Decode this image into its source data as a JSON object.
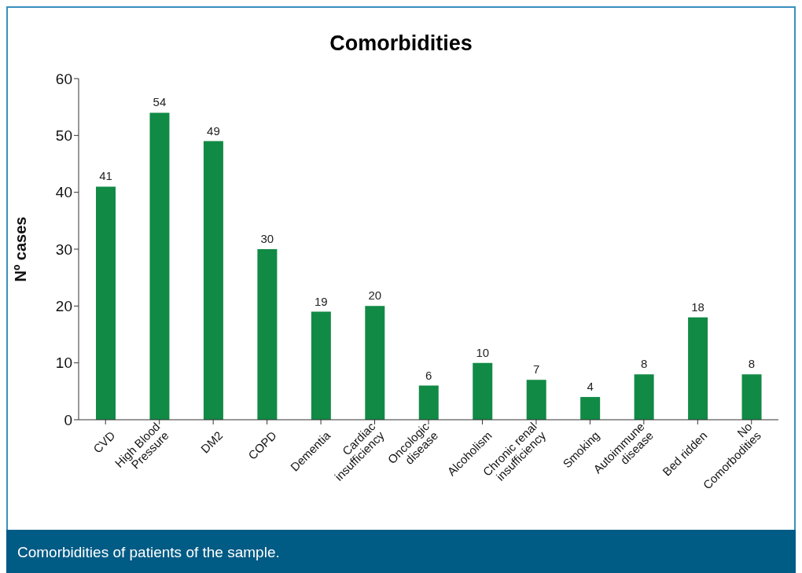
{
  "chart_data": {
    "type": "bar",
    "title": "Comorbidities",
    "ylabel": "Nº cases",
    "categories": [
      "CVD",
      "High Blood\nPressure",
      "DM2",
      "COPD",
      "Dementia",
      "Cardiac\ninsufficiency",
      "Oncologic\ndisease",
      "Alcoholism",
      "Chronic renal\ninsufficiency",
      "Smoking",
      "Autoimmune\ndisease",
      "Bed ridden",
      "No\nComorbodities"
    ],
    "values": [
      41,
      54,
      49,
      30,
      19,
      20,
      6,
      10,
      7,
      4,
      8,
      18,
      8
    ],
    "color": "#118a45",
    "ylim": [
      0,
      60
    ],
    "yticks": [
      0,
      10,
      20,
      30,
      40,
      50,
      60
    ],
    "grid": false,
    "data_labels": true,
    "annotations": [
      "Comorbidities of patients of the sample."
    ]
  }
}
